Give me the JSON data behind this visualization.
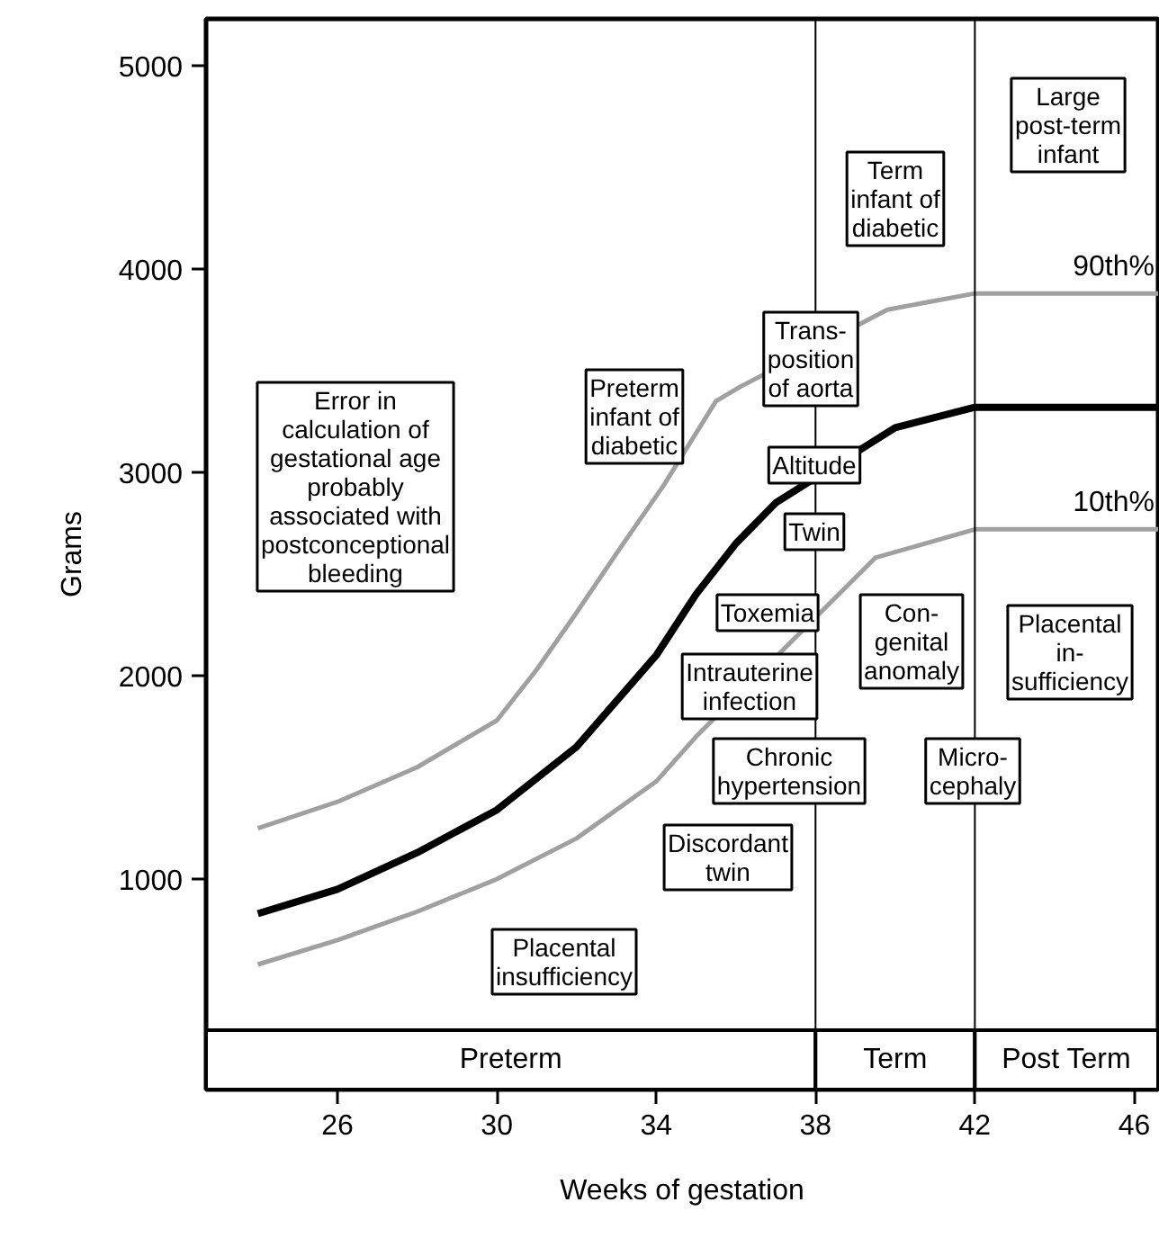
{
  "chart_data": {
    "type": "line",
    "xlabel": "Weeks of gestation",
    "ylabel": "Grams",
    "xlim": [
      22.7,
      46.6
    ],
    "ylim": [
      -35,
      5230
    ],
    "xticks": [
      26,
      30,
      34,
      38,
      42,
      46
    ],
    "yticks": [
      1000,
      2000,
      3000,
      4000,
      5000
    ],
    "grid": false,
    "series": [
      {
        "name": "90th%",
        "color": "#a0a0a0",
        "x": [
          24,
          26,
          28,
          30,
          31,
          32,
          33,
          34.2,
          35.5,
          36.1,
          39.8,
          42,
          46.6
        ],
        "values": [
          1250,
          1380,
          1550,
          1780,
          2030,
          2310,
          2600,
          2940,
          3350,
          3420,
          3800,
          3880,
          3880
        ]
      },
      {
        "color": "#000000",
        "x": [
          24,
          26,
          28,
          30,
          32,
          34,
          35,
          36,
          37,
          40,
          42,
          46.6
        ],
        "values": [
          830,
          950,
          1130,
          1340,
          1650,
          2100,
          2400,
          2650,
          2850,
          3220,
          3320,
          3320
        ]
      },
      {
        "name": "10th%",
        "color": "#a0a0a0",
        "x": [
          24,
          26,
          28,
          30,
          32,
          34,
          35,
          39.5,
          42,
          46.6
        ],
        "values": [
          580,
          700,
          840,
          1000,
          1200,
          1480,
          1700,
          2580,
          2720,
          2720
        ]
      }
    ],
    "ref_lines": [
      {
        "axis": "x",
        "value": 38
      },
      {
        "axis": "x",
        "value": 42
      }
    ],
    "bands": [
      {
        "axis": "x",
        "from": 22.7,
        "to": 38,
        "label": "Preterm"
      },
      {
        "axis": "x",
        "from": 38,
        "to": 42,
        "label": "Term"
      },
      {
        "axis": "x",
        "from": 42,
        "to": 46.6,
        "label": "Post Term"
      }
    ],
    "annotations": [
      "Error in\ncalculation of\ngestational age\nprobably\nassociated with\npostconceptional\nbleeding",
      "Preterm\ninfant of\ndiabetic",
      "Trans-\nposition\nof aorta",
      "Term\ninfant of\ndiabetic",
      "Large\npost-term\ninfant",
      "Altitude",
      "Twin",
      "Toxemia",
      "Con-\ngenital\nanomaly",
      "Placental\nin-\nsufficiency",
      "Intrauterine\ninfection",
      "Chronic\nhypertension",
      "Micro-\ncephaly",
      "Discordant\ntwin",
      "Placental\ninsufficiency"
    ]
  }
}
